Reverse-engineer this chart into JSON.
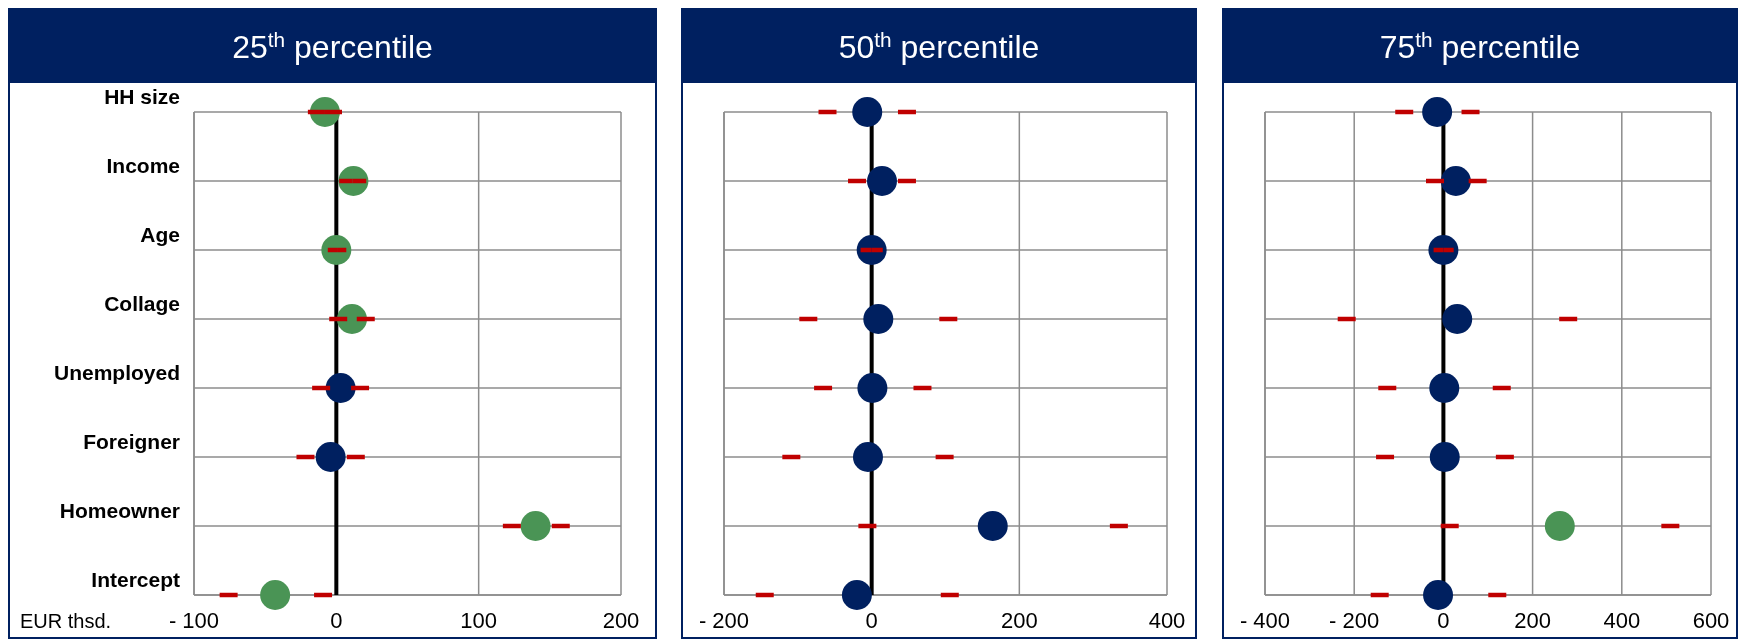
{
  "chart_data": [
    {
      "type": "scatter",
      "title": "25$^{th}$ percentile",
      "orientation": "horizontal",
      "xlabel": "EUR thsd.",
      "categories": [
        "HH size",
        "Income",
        "Age",
        "Collage",
        "Unemployed",
        "Foreigner",
        "Homeowner",
        "Intercept"
      ],
      "values": [
        -8,
        12,
        0,
        11,
        3,
        -4,
        140,
        -43
      ],
      "colors": [
        "#4a9455",
        "#4a9455",
        "#4a9455",
        "#4a9455",
        "#002060",
        "#002060",
        "#4a9455",
        "#4a9455"
      ],
      "errors": [
        [
          -20,
          4
        ],
        [
          2,
          21
        ],
        [
          -6,
          7
        ],
        [
          -5,
          27
        ],
        [
          -17,
          23
        ],
        [
          -28,
          20
        ],
        [
          117,
          164
        ],
        [
          -82,
          -3
        ]
      ],
      "xlim": [
        -100,
        200
      ],
      "xticks": [
        {
          "value": -100,
          "label": "- 100"
        },
        0,
        100,
        200
      ],
      "grid": true,
      "marker": "circle",
      "ref_lines": [
        {
          "axis": "x",
          "value": 0,
          "color": "#000000"
        }
      ]
    },
    {
      "type": "scatter",
      "title": "50$^{th}$ percentile",
      "orientation": "horizontal",
      "categories": [
        null,
        null,
        null,
        null,
        null,
        null,
        null,
        null
      ],
      "values": [
        -6,
        14,
        0,
        9,
        1,
        -5,
        164,
        -20
      ],
      "colors": [
        "#002060",
        "#002060",
        "#002060",
        "#002060",
        "#002060",
        "#002060",
        "#002060",
        "#002060"
      ],
      "errors": [
        [
          -72,
          60
        ],
        [
          -32,
          60
        ],
        [
          -15,
          15
        ],
        [
          -98,
          116
        ],
        [
          -78,
          81
        ],
        [
          -121,
          111
        ],
        [
          -18,
          347
        ],
        [
          -157,
          118
        ]
      ],
      "xlim": [
        -200,
        400
      ],
      "xticks": [
        {
          "value": -200,
          "label": "- 200"
        },
        0,
        200,
        400
      ],
      "grid": true,
      "marker": "circle",
      "tick_labels": "x",
      "ref_lines": [
        {
          "axis": "x",
          "value": 0,
          "color": "#000000"
        }
      ]
    },
    {
      "type": "scatter",
      "title": "75$^{th}$ percentile",
      "orientation": "horizontal",
      "categories": [
        null,
        null,
        null,
        null,
        null,
        null,
        null,
        null
      ],
      "values": [
        -14,
        28,
        0,
        31,
        2,
        3,
        261,
        -12
      ],
      "colors": [
        "#002060",
        "#002060",
        "#002060",
        "#002060",
        "#002060",
        "#002060",
        "#4a9455",
        "#002060"
      ],
      "errors": [
        [
          -108,
          81
        ],
        [
          -39,
          97
        ],
        [
          -22,
          23
        ],
        [
          -237,
          300
        ],
        [
          -146,
          151
        ],
        [
          -151,
          158
        ],
        [
          -6,
          529
        ],
        [
          -163,
          141
        ]
      ],
      "xlim": [
        -400,
        600
      ],
      "xticks": [
        {
          "value": -400,
          "label": "- 400"
        },
        {
          "value": -200,
          "label": "- 200"
        },
        0,
        200,
        400,
        600
      ],
      "grid": true,
      "marker": "circle",
      "tick_labels": "x",
      "ref_lines": [
        {
          "axis": "x",
          "value": 0,
          "color": "#000000"
        }
      ]
    }
  ]
}
